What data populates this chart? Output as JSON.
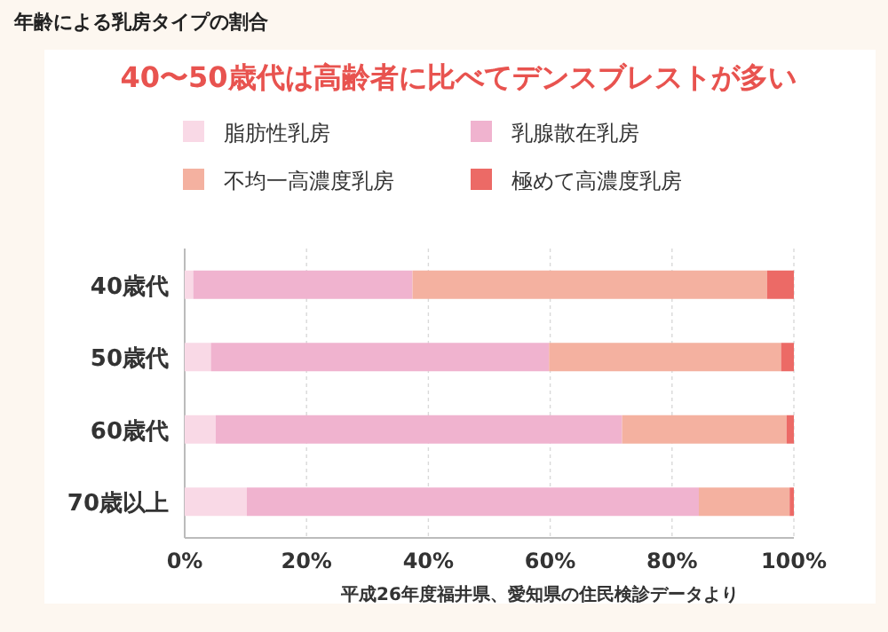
{
  "chart_data": {
    "type": "bar",
    "orientation": "horizontal",
    "stacked": true,
    "title": "年齢による乳房タイプの割合",
    "subtitle": "40〜50歳代は高齢者に比べてデンスブレストが多い",
    "annotations": [
      "平成26年度福井県、愛知県の住民検診データより"
    ],
    "categories": [
      "40歳代",
      "50歳代",
      "60歳代",
      "70歳以上"
    ],
    "series": [
      {
        "name": "脂肪性乳房",
        "color": "#f9d9e6",
        "values": [
          1.4,
          4.3,
          5.1,
          10.2
        ]
      },
      {
        "name": "乳腺散在乳房",
        "color": "#f0b3cf",
        "values": [
          36,
          55.5,
          66.7,
          74.2
        ]
      },
      {
        "name": "不均一高濃度乳房",
        "color": "#f4b1a0",
        "values": [
          58.2,
          38.1,
          27.0,
          14.9
        ]
      },
      {
        "name": "極めて高濃度乳房",
        "color": "#ec6a66",
        "values": [
          4.4,
          2.1,
          1.2,
          0.7
        ]
      }
    ],
    "xlim": [
      0,
      100
    ],
    "xticks": [
      {
        "value": 0,
        "label": "0%"
      },
      {
        "value": 20,
        "label": "20%"
      },
      {
        "value": 40,
        "label": "40%"
      },
      {
        "value": 60,
        "label": "60%"
      },
      {
        "value": 80,
        "label": "80%"
      },
      {
        "value": 100,
        "label": "100%"
      }
    ],
    "grid": "x",
    "legend": "top"
  }
}
